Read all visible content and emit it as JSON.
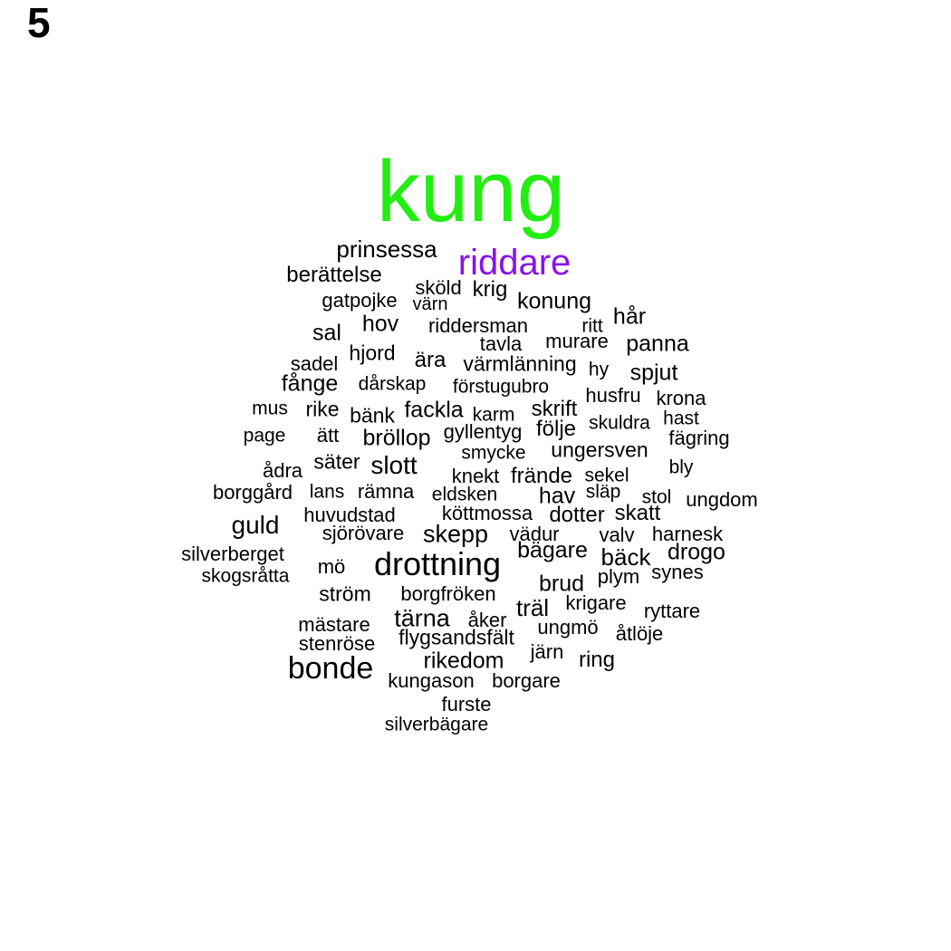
{
  "panel_label": "5",
  "colors": {
    "top_word": "#22ee11",
    "second_word": "#8811ee",
    "default": "#000000"
  },
  "words": [
    "kung",
    "riddare",
    "prinsessa",
    "berättelse",
    "sköld",
    "krig",
    "gatpojke",
    "värn",
    "konung",
    "hov",
    "riddersman",
    "ritt",
    "hår",
    "sal",
    "tavla",
    "murare",
    "panna",
    "hjord",
    "ära",
    "sadel",
    "värmlänning",
    "hy",
    "spjut",
    "fånge",
    "dårskap",
    "förstugubro",
    "husfru",
    "krona",
    "mus",
    "rike",
    "bänk",
    "fackla",
    "karm",
    "skrift",
    "hast",
    "skuldra",
    "gyllentyg",
    "följe",
    "page",
    "ätt",
    "bröllop",
    "fägring",
    "smycke",
    "ungersven",
    "säter",
    "ådra",
    "slott",
    "bly",
    "knekt",
    "frände",
    "sekel",
    "borggård",
    "lans",
    "rämna",
    "eldsken",
    "hav",
    "släp",
    "stol",
    "ungdom",
    "köttmossa",
    "huvudstad",
    "dotter",
    "skatt",
    "guld",
    "sjörövare",
    "skepp",
    "vädur",
    "valv",
    "harnesk",
    "silverberget",
    "bägare",
    "drogo",
    "bäck",
    "mö",
    "drottning",
    "skogsråtta",
    "synes",
    "plym",
    "brud",
    "ström",
    "borgfröken",
    "krigare",
    "träl",
    "ryttare",
    "mästare",
    "tärna",
    "åker",
    "ungmö",
    "åtlöje",
    "stenröse",
    "flygsandsfält",
    "järn",
    "rikedom",
    "ring",
    "bonde",
    "kungason",
    "borgare",
    "furste",
    "silverbägare"
  ]
}
